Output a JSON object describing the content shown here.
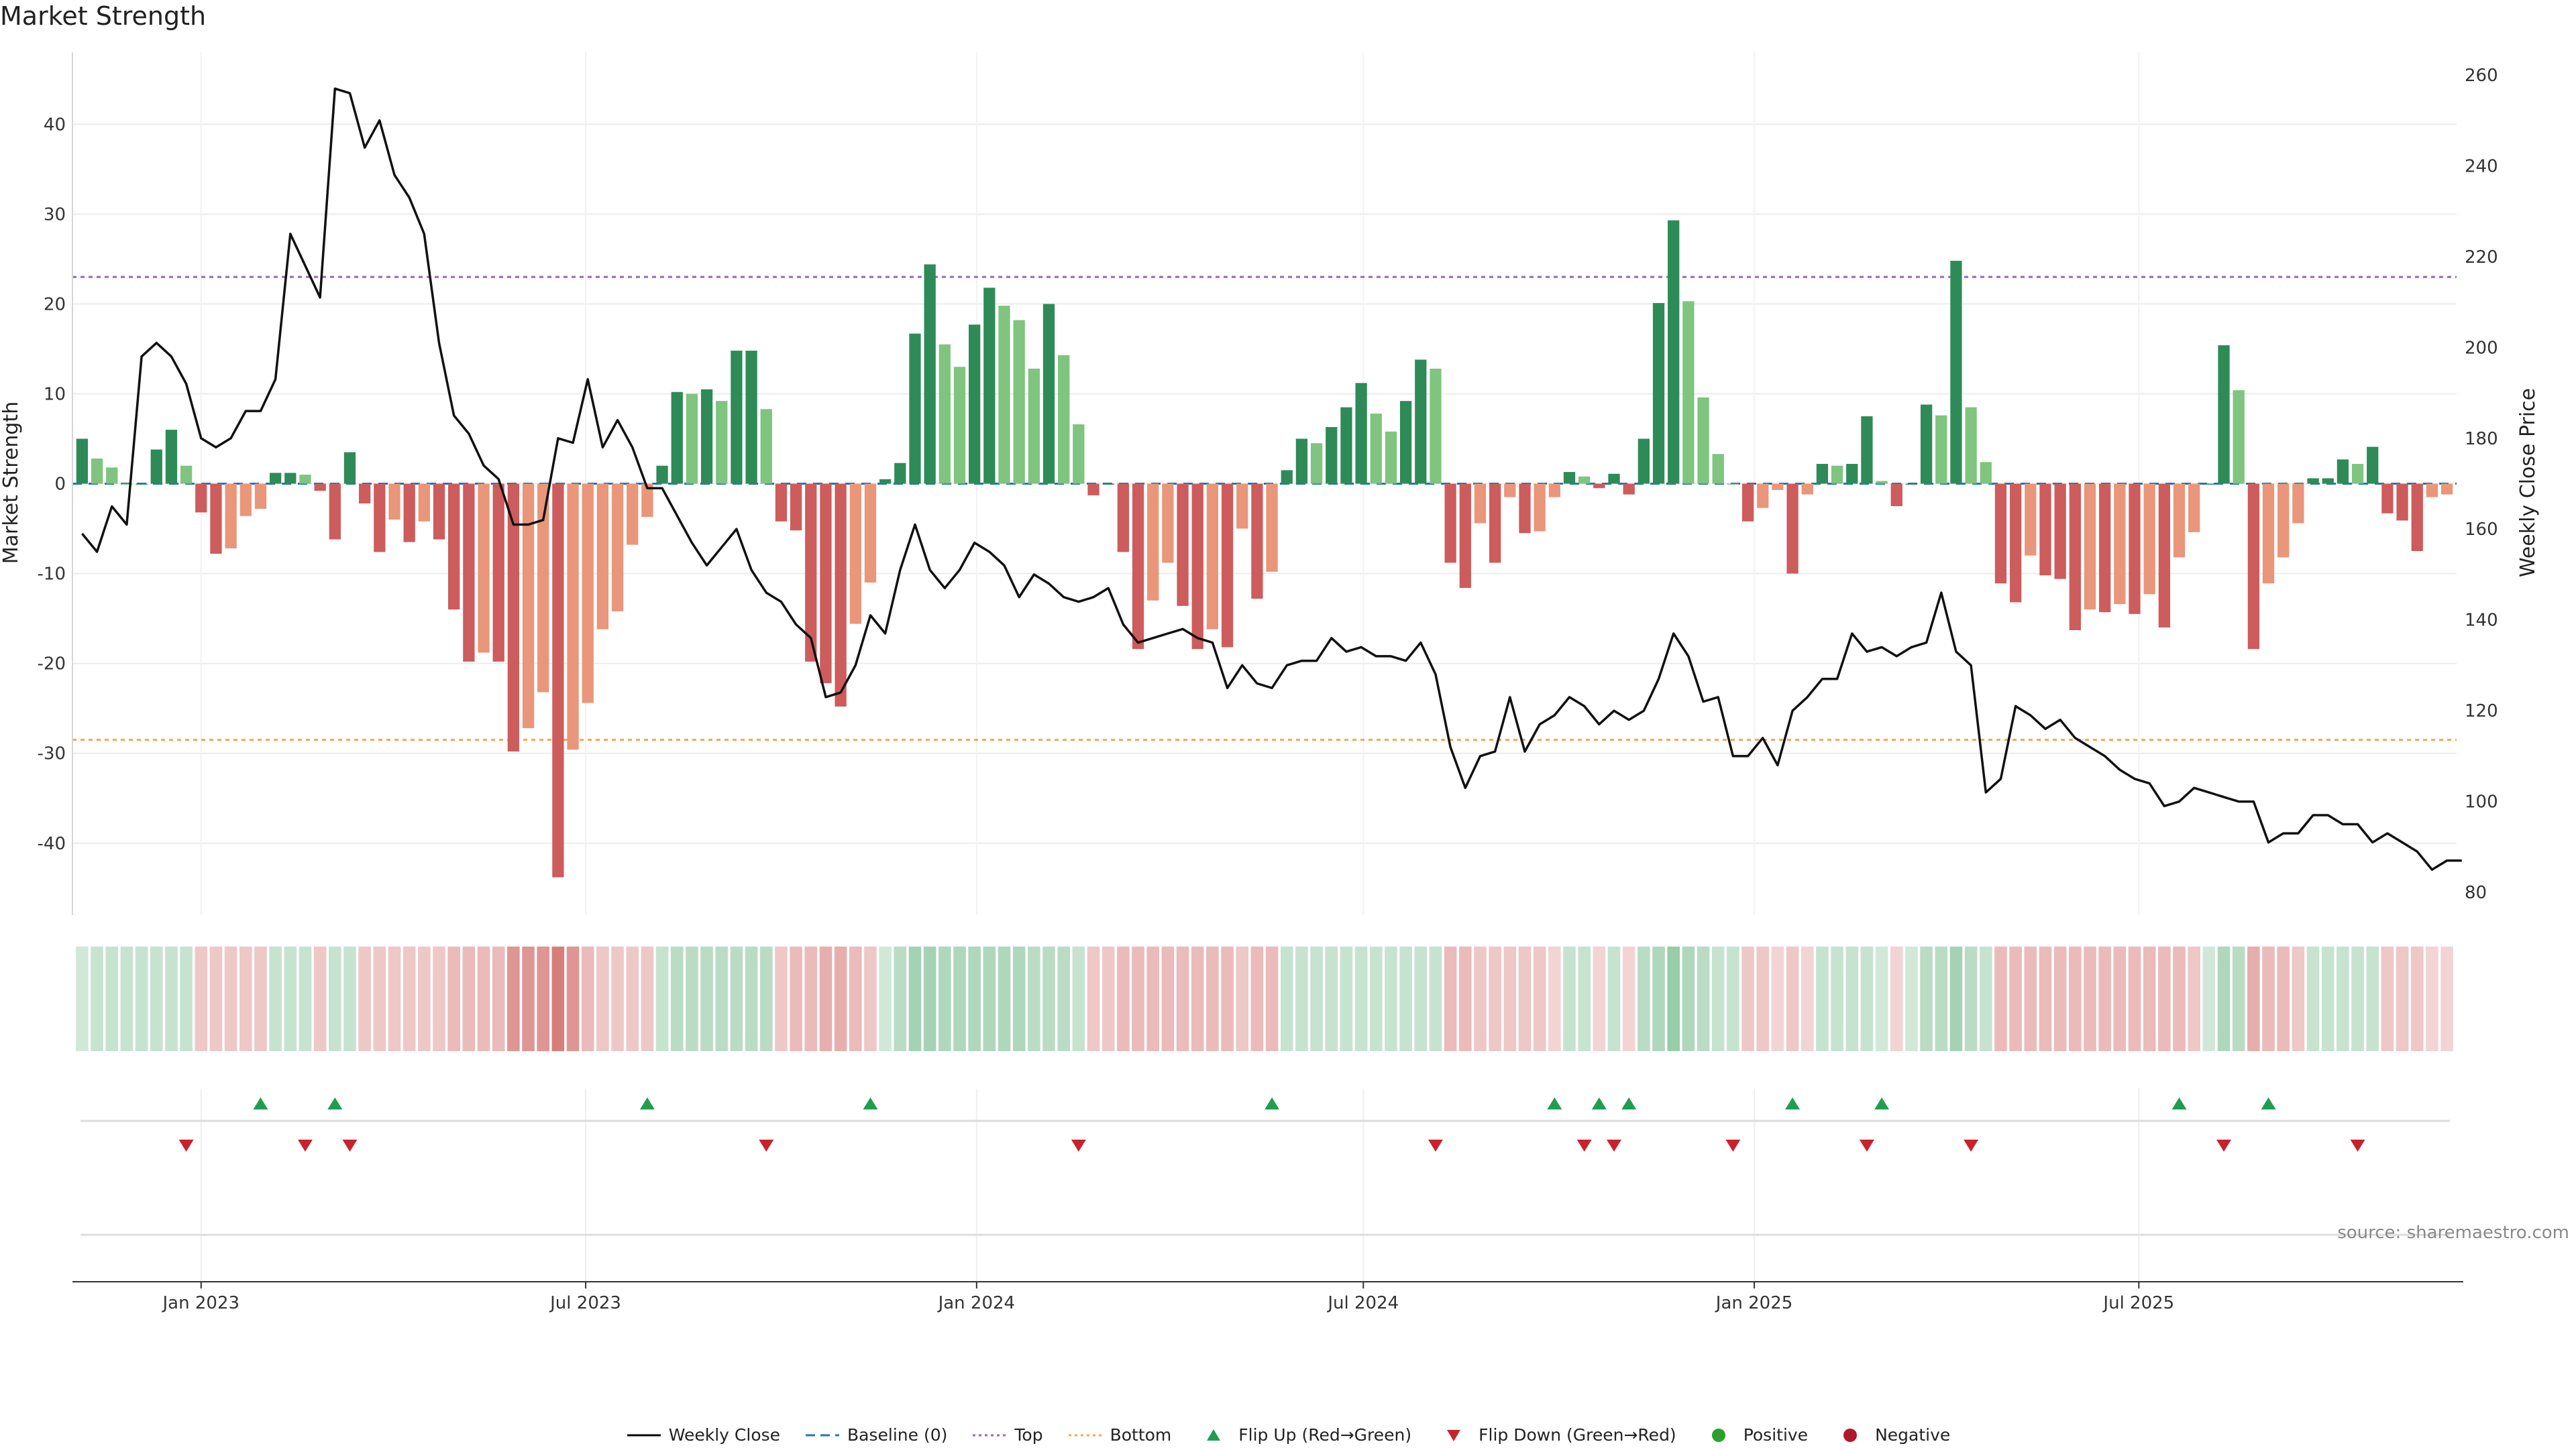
{
  "chart_data": {
    "type": "bar+line",
    "title": "Market Strength",
    "ylabel_left": "Market Strength",
    "ylabel_right": "Weekly Close Price",
    "source": "source: sharemaestro.com",
    "ylim_left": [
      -48,
      48
    ],
    "yticks_left": [
      -40,
      -30,
      -20,
      -10,
      0,
      10,
      20,
      30,
      40
    ],
    "ylim_right": [
      75,
      265
    ],
    "yticks_right": [
      80,
      100,
      120,
      140,
      160,
      180,
      200,
      220,
      240,
      260
    ],
    "x_start": "2022-11-06",
    "x_ticks": [
      {
        "label": "Jan 2023",
        "date": "2023-01-01"
      },
      {
        "label": "Jul 2023",
        "date": "2023-07-01"
      },
      {
        "label": "Jan 2024",
        "date": "2024-01-01"
      },
      {
        "label": "Jul 2024",
        "date": "2024-07-01"
      },
      {
        "label": "Jan 2025",
        "date": "2025-01-01"
      },
      {
        "label": "Jul 2025",
        "date": "2025-07-01"
      }
    ],
    "top_level": 23,
    "bottom_level": -28.5,
    "strength": [
      5,
      2.8,
      1.8,
      0,
      0,
      3.8,
      6,
      2,
      -3.2,
      -7.8,
      -7.2,
      -3.6,
      -2.8,
      1.2,
      1.2,
      1,
      -0.8,
      -6.2,
      3.5,
      -2.2,
      -7.6,
      -4,
      -6.5,
      -4.2,
      -6.2,
      -14,
      -19.8,
      -18.8,
      -19.8,
      -29.8,
      -27.2,
      -23.2,
      -43.8,
      -29.6,
      -24.4,
      -16.2,
      -14.2,
      -6.8,
      -3.7,
      2,
      10.2,
      10,
      10.5,
      9.2,
      14.8,
      14.8,
      8.3,
      -4.2,
      -5.2,
      -19.8,
      -22.2,
      -24.8,
      -15.6,
      -11,
      0.5,
      2.3,
      16.7,
      24.4,
      15.5,
      13,
      17.7,
      21.8,
      19.8,
      18.2,
      12.8,
      20,
      14.3,
      6.6,
      -1.3,
      0,
      -7.6,
      -18.4,
      -13,
      -8.8,
      -13.6,
      -18.4,
      -16.2,
      -18.2,
      -5,
      -12.8,
      -9.8,
      1.5,
      5,
      4.5,
      6.3,
      8.5,
      11.2,
      7.8,
      5.8,
      9.2,
      13.8,
      12.8,
      -8.8,
      -11.6,
      -4.4,
      -8.8,
      -1.5,
      -5.5,
      -5.3,
      -1.5,
      1.3,
      0.8,
      -0.5,
      1.1,
      -1.2,
      5,
      20.1,
      29.3,
      20.3,
      9.6,
      3.3,
      0,
      -4.2,
      -2.7,
      -0.7,
      -10,
      -1.2,
      2.2,
      2,
      2.2,
      7.5,
      0.3,
      -2.5,
      0,
      8.8,
      7.6,
      24.8,
      8.5,
      2.4,
      -11.1,
      -13.2,
      -8,
      -10.2,
      -10.6,
      -16.3,
      -14,
      -14.3,
      -13.4,
      -14.5,
      -12.3,
      -16,
      -8.2,
      -5.4,
      0,
      15.4,
      10.4,
      -18.4,
      -11.1,
      -8.2,
      -4.4,
      0.6,
      0.6,
      2.7,
      2.2,
      4.1,
      -3.3,
      -4.1,
      -7.5,
      -1.5,
      -1.2
    ],
    "weekly_close": [
      159,
      155,
      165,
      161,
      198,
      201,
      198,
      192,
      180,
      178,
      180,
      186,
      186,
      193,
      225,
      218,
      211,
      257,
      256,
      244,
      250,
      238,
      233,
      225,
      201,
      185,
      181,
      174,
      171,
      161,
      161,
      162,
      180,
      179,
      193,
      178,
      184,
      178,
      169,
      169,
      163,
      157,
      152,
      156,
      160,
      151,
      146,
      144,
      139,
      136,
      123,
      124,
      130,
      141,
      137,
      151,
      161,
      151,
      147,
      151,
      157,
      155,
      152,
      145,
      150,
      148,
      145,
      144,
      145,
      147,
      139,
      135,
      136,
      137,
      138,
      136,
      135,
      125,
      130,
      126,
      125,
      130,
      131,
      131,
      136,
      133,
      134,
      132,
      132,
      131,
      135,
      128,
      112,
      103,
      110,
      111,
      123,
      111,
      117,
      119,
      123,
      121,
      117,
      120,
      118,
      120,
      127,
      137,
      132,
      122,
      123,
      110,
      110,
      114,
      108,
      120,
      123,
      127,
      127,
      137,
      133,
      134,
      132,
      134,
      135,
      146,
      133,
      130,
      102,
      105,
      121,
      119,
      116,
      118,
      114,
      112,
      110,
      107,
      105,
      104,
      99,
      100,
      103,
      102,
      101,
      100,
      100,
      91,
      93,
      93,
      97,
      97,
      95,
      95,
      91,
      93,
      91,
      89,
      85,
      87,
      87
    ],
    "heat_values": [
      0.3,
      0.4,
      0.4,
      0.4,
      0.4,
      0.4,
      0.4,
      0.4,
      -0.4,
      -0.4,
      -0.4,
      -0.4,
      -0.4,
      0.4,
      0.4,
      0.4,
      -0.4,
      0.4,
      0.4,
      -0.4,
      -0.4,
      -0.4,
      -0.4,
      -0.4,
      -0.4,
      -0.5,
      -0.5,
      -0.5,
      -0.5,
      -0.8,
      -0.8,
      -0.8,
      -1,
      -0.8,
      -0.5,
      -0.4,
      -0.4,
      -0.4,
      -0.4,
      0.4,
      0.5,
      0.5,
      0.5,
      0.5,
      0.5,
      0.5,
      0.5,
      -0.4,
      -0.5,
      -0.5,
      -0.6,
      -0.6,
      -0.5,
      -0.4,
      0.3,
      0.5,
      0.7,
      0.7,
      0.6,
      0.6,
      0.6,
      0.6,
      0.6,
      0.6,
      0.5,
      0.5,
      0.5,
      0.4,
      -0.4,
      -0.4,
      -0.5,
      -0.5,
      -0.5,
      -0.5,
      -0.5,
      -0.5,
      -0.5,
      -0.5,
      -0.4,
      -0.5,
      -0.5,
      0.4,
      0.4,
      0.4,
      0.4,
      0.4,
      0.4,
      0.4,
      0.4,
      0.4,
      0.4,
      0.4,
      -0.5,
      -0.5,
      -0.4,
      -0.4,
      -0.4,
      -0.4,
      -0.4,
      -0.3,
      0.4,
      0.4,
      -0.3,
      0.4,
      -0.3,
      0.5,
      0.6,
      0.8,
      0.6,
      0.5,
      0.4,
      0.4,
      -0.4,
      -0.4,
      -0.3,
      -0.4,
      -0.3,
      0.4,
      0.4,
      0.4,
      0.4,
      0.3,
      -0.3,
      0.3,
      0.5,
      0.5,
      0.7,
      0.5,
      0.4,
      -0.5,
      -0.5,
      -0.5,
      -0.5,
      -0.5,
      -0.5,
      -0.5,
      -0.5,
      -0.5,
      -0.5,
      -0.5,
      -0.5,
      -0.5,
      -0.4,
      0.3,
      0.6,
      0.5,
      -0.6,
      -0.5,
      -0.5,
      -0.4,
      0.4,
      0.4,
      0.4,
      0.4,
      0.4,
      -0.4,
      -0.4,
      -0.4,
      -0.3,
      -0.3
    ],
    "flip_up_weeks": [
      12,
      17,
      38,
      53,
      80,
      99,
      102,
      104,
      115,
      121,
      141,
      147
    ],
    "flip_down_weeks": [
      7,
      15,
      18,
      46,
      67,
      91,
      101,
      103,
      111,
      120,
      127,
      144,
      153
    ],
    "legend": [
      {
        "label": "Weekly Close",
        "kind": "line",
        "color": "#000000"
      },
      {
        "label": "Baseline (0)",
        "kind": "dash",
        "color": "#1f77b4"
      },
      {
        "label": "Top",
        "kind": "dot",
        "color": "#9467bd"
      },
      {
        "label": "Bottom",
        "kind": "dot",
        "color": "#ffa24a"
      },
      {
        "label": "Flip Up (Red→Green)",
        "kind": "up",
        "color": "#1f9e50"
      },
      {
        "label": "Flip Down (Green→Red)",
        "kind": "down",
        "color": "#c8232c"
      },
      {
        "label": "Positive",
        "kind": "circle",
        "color": "#2ca02c"
      },
      {
        "label": "Negative",
        "kind": "circle",
        "color": "#b2182b"
      }
    ]
  }
}
